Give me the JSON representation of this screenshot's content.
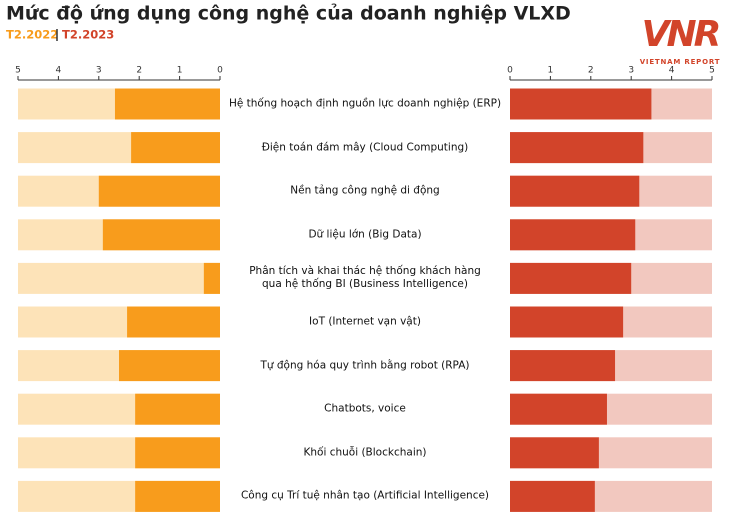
{
  "chart_data": {
    "type": "butterfly-bar",
    "title": "Mức độ ứng dụng công nghệ của doanh nghiệp VLXD",
    "categories": [
      "Hệ thống hoạch định nguồn lực doanh nghiệp (ERP)",
      "Điện toán đám mây (Cloud Computing)",
      "Nền tảng công nghệ di động",
      "Dữ liệu lớn (Big Data)",
      "Phân tích và khai thác hệ thống khách hàng\nqua hệ thống BI (Business Intelligence)",
      "IoT (Internet vạn vật)",
      "Tự động hóa quy trình bằng robot (RPA)",
      "Chatbots, voice",
      "Khối chuỗi (Blockchain)",
      "Công cụ Trí tuệ nhân tạo (Artificial Intelligence)"
    ],
    "series": [
      {
        "name": "T2.2022",
        "color": "#f89c1c",
        "background": "#fde3b8",
        "values": [
          2.6,
          2.2,
          3.0,
          2.9,
          0.4,
          2.3,
          2.5,
          2.1,
          2.1,
          2.1
        ]
      },
      {
        "name": "T2.2023",
        "color": "#d2442a",
        "background": "#f2c8bf",
        "values": [
          3.5,
          3.3,
          3.2,
          3.1,
          3.0,
          2.8,
          2.6,
          2.4,
          2.2,
          2.1
        ]
      }
    ],
    "xlim": [
      0,
      5
    ],
    "xticks": [
      0,
      1,
      2,
      3,
      4,
      5
    ]
  },
  "logo": {
    "mark": "VNR",
    "text": "VIETNAM REPORT"
  }
}
